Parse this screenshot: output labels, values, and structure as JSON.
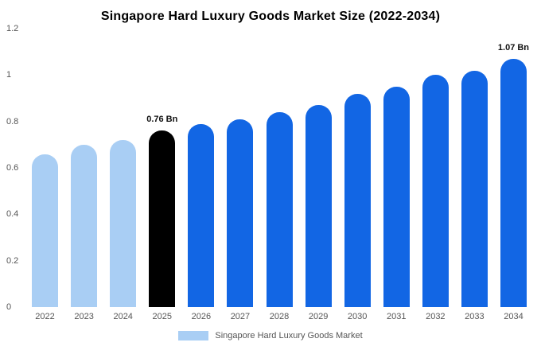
{
  "title": "Singapore Hard Luxury Goods Market Size (2022-2034)",
  "legend": {
    "label": "Singapore Hard Luxury Goods Market",
    "swatch_color": "#a9cef4"
  },
  "colors": {
    "light_blue": "#a9cef4",
    "blue": "#1266e4",
    "black": "#000000",
    "axis_text": "#555555"
  },
  "chart_data": {
    "type": "bar",
    "title": "Singapore Hard Luxury Goods Market Size (2022-2034)",
    "categories": [
      "2022",
      "2023",
      "2024",
      "2025",
      "2026",
      "2027",
      "2028",
      "2029",
      "2030",
      "2031",
      "2032",
      "2033",
      "2034"
    ],
    "values": [
      0.66,
      0.7,
      0.72,
      0.76,
      0.79,
      0.81,
      0.84,
      0.87,
      0.92,
      0.95,
      1.0,
      1.02,
      1.07
    ],
    "unit": "Bn",
    "bar_colors": [
      "#a9cef4",
      "#a9cef4",
      "#a9cef4",
      "#000000",
      "#1266e4",
      "#1266e4",
      "#1266e4",
      "#1266e4",
      "#1266e4",
      "#1266e4",
      "#1266e4",
      "#1266e4",
      "#1266e4"
    ],
    "annotations": [
      {
        "index": 3,
        "text": "0.76 Bn"
      },
      {
        "index": 12,
        "text": "1.07 Bn"
      }
    ],
    "xlabel": "",
    "ylabel": "",
    "ylim": [
      0,
      1.2
    ],
    "yticks": [
      "0",
      "0.2",
      "0.4",
      "0.6",
      "0.8",
      "1",
      "1.2"
    ],
    "grid": false,
    "legend_position": "bottom"
  }
}
